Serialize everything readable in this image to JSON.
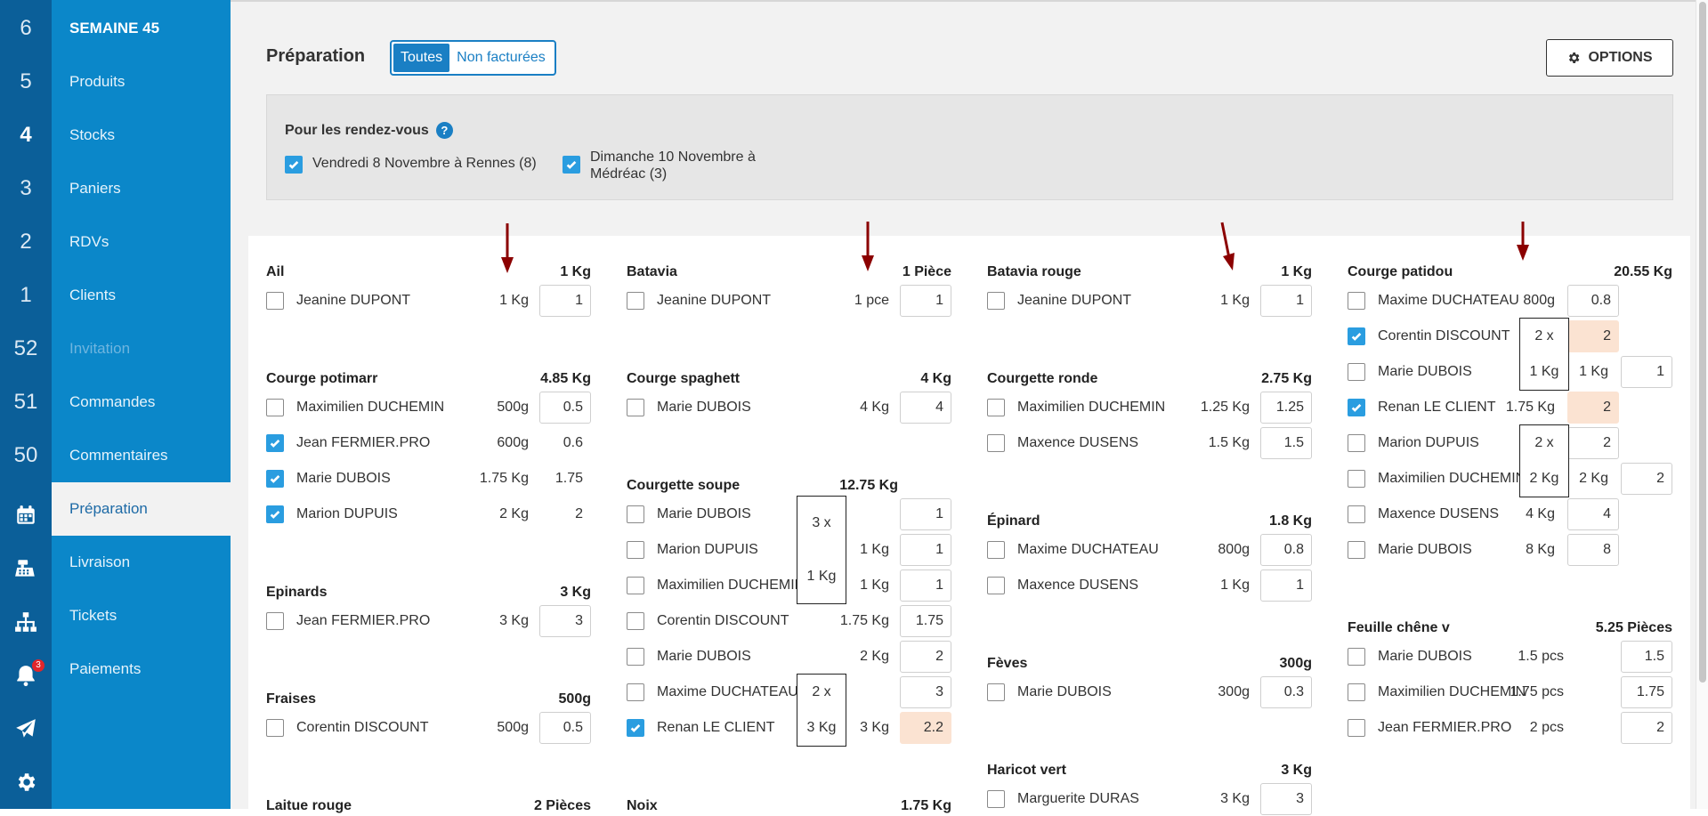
{
  "rail": {
    "numbers": [
      {
        "label": "6",
        "bold": false
      },
      {
        "label": "5",
        "bold": false
      },
      {
        "label": "4",
        "bold": true
      },
      {
        "label": "3",
        "bold": false
      },
      {
        "label": "2",
        "bold": false
      },
      {
        "label": "1",
        "bold": false
      },
      {
        "label": "52",
        "bold": false
      },
      {
        "label": "51",
        "bold": false
      },
      {
        "label": "50",
        "bold": false
      }
    ],
    "icons": [
      "calendar-icon",
      "cash-register-icon",
      "sitemap-icon",
      "bell-icon",
      "paper-plane-icon",
      "gear-icon"
    ],
    "bell_badge": "3"
  },
  "sidebar": {
    "title": "SEMAINE 45",
    "items": [
      {
        "label": "Produits"
      },
      {
        "label": "Stocks"
      },
      {
        "label": "Paniers"
      },
      {
        "label": "RDVs"
      },
      {
        "label": "Clients"
      },
      {
        "label": "Invitation"
      },
      {
        "label": "Commandes"
      },
      {
        "label": "Commentaires"
      },
      {
        "label": "Préparation"
      },
      {
        "label": "Livraison"
      },
      {
        "label": "Tickets"
      },
      {
        "label": "Paiements"
      }
    ],
    "active": "Préparation",
    "disabled": "Invitation",
    "colors": {
      "rail": "#0b5f99",
      "sidebar": "#0b87c9"
    }
  },
  "header": {
    "title": "Préparation",
    "filter_all": "Toutes",
    "filter_unbilled": "Non facturées",
    "options_label": "OPTIONS"
  },
  "rdv": {
    "title": "Pour les rendez-vous",
    "items": [
      {
        "label": "Vendredi 8 Novembre à Rennes (8)",
        "checked": true
      },
      {
        "label_line1": "Dimanche 10 Novembre à",
        "label_line2": "Médréac (3)",
        "checked": true
      }
    ]
  },
  "columns": [
    {
      "groups": [
        {
          "name": "Ail",
          "total": "1 Kg",
          "rows": [
            {
              "client": "Jeanine DUPONT",
              "qty": "1 Kg",
              "value": "1",
              "checked": false
            }
          ]
        },
        {
          "name": "Courge potimarr",
          "total": "4.85 Kg",
          "rows": [
            {
              "client": "Maximilien DUCHEMIN",
              "qty": "500g",
              "value": "0.5",
              "checked": false
            },
            {
              "client": "Jean FERMIER.PRO",
              "qty": "600g",
              "value": "0.6",
              "checked": true
            },
            {
              "client": "Marie DUBOIS",
              "qty": "1.75 Kg",
              "value": "1.75",
              "checked": true
            },
            {
              "client": "Marion DUPUIS",
              "qty": "2 Kg",
              "value": "2",
              "checked": true
            }
          ]
        },
        {
          "name": "Epinards",
          "total": "3 Kg",
          "rows": [
            {
              "client": "Jean FERMIER.PRO",
              "qty": "3 Kg",
              "value": "3",
              "checked": false
            }
          ]
        },
        {
          "name": "Fraises",
          "total": "500g",
          "rows": [
            {
              "client": "Corentin DISCOUNT",
              "qty": "500g",
              "value": "0.5",
              "checked": false
            }
          ]
        },
        {
          "name": "Laitue rouge",
          "total": "2 Pièces",
          "rows": []
        }
      ]
    },
    {
      "groups": [
        {
          "name": "Batavia",
          "total": "1 Pièce",
          "rows": [
            {
              "client": "Jeanine DUPONT",
              "qty": "1 pce",
              "value": "1",
              "checked": false
            }
          ]
        },
        {
          "name": "Courge spaghett",
          "total": "4 Kg",
          "rows": [
            {
              "client": "Marie DUBOIS",
              "qty": "4 Kg",
              "value": "4",
              "checked": false
            }
          ]
        },
        {
          "name": "Courgette soupe",
          "total": "12.75 Kg",
          "rows": [
            {
              "client": "Marie DUBOIS",
              "qty": "",
              "value": "1",
              "checked": false
            },
            {
              "client": "Marion DUPUIS",
              "qty": "1 Kg",
              "value": "1",
              "checked": false
            },
            {
              "client": "Maximilien DUCHEMIN",
              "qty": "1 Kg",
              "value": "1",
              "checked": false
            },
            {
              "client": "Corentin DISCOUNT",
              "qty": "1.75 Kg",
              "value": "1.75",
              "checked": false
            },
            {
              "client": "Marie DUBOIS",
              "qty": "2 Kg",
              "value": "2",
              "checked": false
            },
            {
              "client": "Maxime DUCHATEAU",
              "qty": "",
              "value": "3",
              "checked": false
            },
            {
              "client": "Renan LE CLIENT",
              "qty": "3 Kg",
              "value": "2.2",
              "checked": true
            }
          ],
          "boxes": [
            {
              "line1": "3 x",
              "line2": "1 Kg"
            },
            {
              "line1": "2 x",
              "line2": "3 Kg"
            }
          ]
        },
        {
          "name": "Noix",
          "total": "1.75 Kg",
          "rows": []
        }
      ]
    },
    {
      "groups": [
        {
          "name": "Batavia rouge",
          "total": "1 Kg",
          "rows": [
            {
              "client": "Jeanine DUPONT",
              "qty": "1 Kg",
              "value": "1",
              "checked": false
            }
          ]
        },
        {
          "name": "Courgette ronde",
          "total": "2.75 Kg",
          "rows": [
            {
              "client": "Maximilien DUCHEMIN",
              "qty": "1.25 Kg",
              "value": "1.25",
              "checked": false
            },
            {
              "client": "Maxence DUSENS",
              "qty": "1.5 Kg",
              "value": "1.5",
              "checked": false
            }
          ]
        },
        {
          "name": "Épinard",
          "total": "1.8 Kg",
          "rows": [
            {
              "client": "Maxime DUCHATEAU",
              "qty": "800g",
              "value": "0.8",
              "checked": false
            },
            {
              "client": "Maxence DUSENS",
              "qty": "1 Kg",
              "value": "1",
              "checked": false
            }
          ]
        },
        {
          "name": "Fèves",
          "total": "300g",
          "rows": [
            {
              "client": "Marie DUBOIS",
              "qty": "300g",
              "value": "0.3",
              "checked": false
            }
          ]
        },
        {
          "name": "Haricot vert",
          "total": "3 Kg",
          "rows": [
            {
              "client": "Marguerite DURAS",
              "qty": "3 Kg",
              "value": "3",
              "checked": false
            }
          ]
        }
      ]
    },
    {
      "groups": [
        {
          "name": "Courge patidou",
          "total": "20.55 Kg",
          "rows": [
            {
              "client": "Maxime DUCHATEAU",
              "qty": "800g",
              "value": "0.8",
              "checked": false
            },
            {
              "client": "Corentin DISCOUNT",
              "qty": "",
              "value": "2",
              "checked": true
            },
            {
              "client": "Marie DUBOIS",
              "qty": "1 Kg",
              "value": "1",
              "checked": false
            },
            {
              "client": "Renan LE CLIENT",
              "qty": "1.75 Kg",
              "value": "2",
              "checked": true
            },
            {
              "client": "Marion DUPUIS",
              "qty": "",
              "value": "2",
              "checked": false
            },
            {
              "client": "Maximilien DUCHEMIN",
              "qty": "2 Kg",
              "value": "2",
              "checked": false
            },
            {
              "client": "Maxence DUSENS",
              "qty": "4 Kg",
              "value": "4",
              "checked": false
            },
            {
              "client": "Marie DUBOIS",
              "qty": "8 Kg",
              "value": "8",
              "checked": false
            }
          ],
          "boxes": [
            {
              "line1": "2 x",
              "line2": "1 Kg"
            },
            {
              "line1": "2 x",
              "line2": "2 Kg"
            }
          ]
        },
        {
          "name": "Feuille chêne v",
          "total": "5.25 Pièces",
          "rows": [
            {
              "client": "Marie DUBOIS",
              "qty": "1.5 pcs",
              "value": "1.5",
              "checked": false
            },
            {
              "client": "Maximilien DUCHEMIN",
              "qty": "1.75 pcs",
              "value": "1.75",
              "checked": false
            },
            {
              "client": "Jean FERMIER.PRO",
              "qty": "2 pcs",
              "value": "2",
              "checked": false
            }
          ]
        }
      ]
    }
  ]
}
